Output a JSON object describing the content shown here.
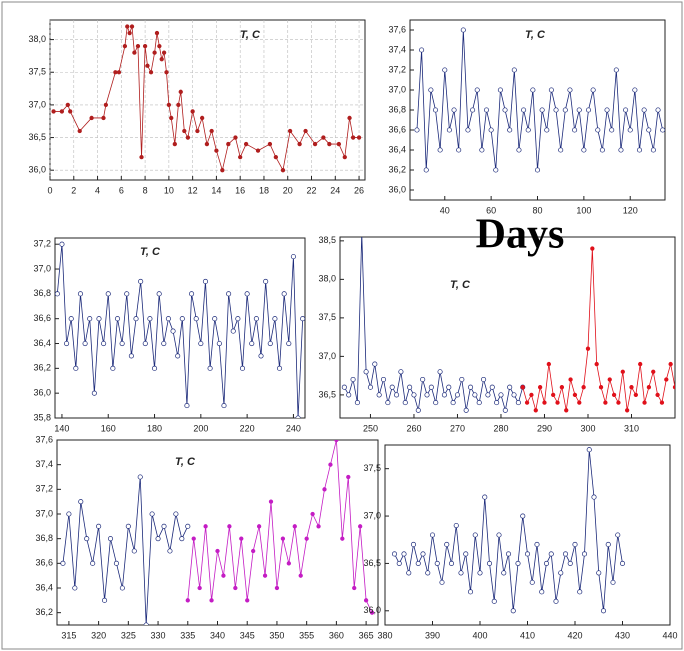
{
  "overlay_text": "Days",
  "chart_data": [
    {
      "type": "line",
      "title": "T, C",
      "grid": true,
      "xlim": [
        0,
        26.5
      ],
      "xticks": [
        0,
        2,
        4,
        6,
        8,
        10,
        12,
        14,
        16,
        18,
        20,
        22,
        24,
        26
      ],
      "ylim": [
        35.85,
        38.3
      ],
      "yticks": [
        {
          "value": 36.0,
          "label": "36,0"
        },
        {
          "value": 36.5,
          "label": "36,5"
        },
        {
          "value": 37.0,
          "label": "37,0"
        },
        {
          "value": 37.5,
          "label": "37,5"
        },
        {
          "value": 38.0,
          "label": "38,0"
        }
      ],
      "series": [
        {
          "color": "#b01e1e",
          "marker": "filled",
          "x": [
            0.3,
            1,
            1.5,
            1.7,
            2.5,
            3.5,
            4.5,
            4.7,
            5.5,
            5.8,
            6.3,
            6.5,
            6.7,
            6.9,
            7.1,
            7.4,
            7.7,
            8.0,
            8.2,
            8.5,
            8.8,
            9.0,
            9.2,
            9.4,
            9.6,
            9.8,
            10.0,
            10.2,
            10.5,
            10.8,
            11.0,
            11.3,
            11.6,
            12.0,
            12.4,
            12.8,
            13.2,
            13.6,
            14.0,
            14.5,
            15.0,
            15.6,
            16.0,
            16.5,
            17.5,
            18.5,
            19.0,
            19.6,
            20.2,
            21.0,
            21.5,
            22.3,
            23.0,
            23.5,
            24.3,
            24.8,
            25.2,
            25.5,
            26.0
          ],
          "values": [
            36.9,
            36.9,
            37.0,
            36.9,
            36.6,
            36.8,
            36.8,
            37.0,
            37.5,
            37.5,
            37.9,
            38.2,
            38.1,
            38.2,
            37.8,
            37.9,
            36.2,
            37.9,
            37.6,
            37.5,
            37.8,
            38.1,
            37.9,
            37.7,
            37.8,
            37.5,
            37.0,
            36.8,
            36.4,
            37.0,
            37.2,
            36.6,
            36.5,
            36.9,
            36.6,
            36.8,
            36.4,
            36.6,
            36.3,
            36.0,
            36.4,
            36.5,
            36.2,
            36.4,
            36.3,
            36.4,
            36.2,
            36.0,
            36.6,
            36.4,
            36.6,
            36.4,
            36.5,
            36.4,
            36.4,
            36.2,
            36.8,
            36.5,
            36.5
          ]
        }
      ]
    },
    {
      "type": "line",
      "title": "T, C",
      "grid": false,
      "xlim": [
        25,
        135
      ],
      "xticks": [
        40,
        60,
        80,
        100,
        120
      ],
      "ylim": [
        35.9,
        37.7
      ],
      "yticks": [
        {
          "value": 36.0,
          "label": "36,0"
        },
        {
          "value": 36.2,
          "label": "36,2"
        },
        {
          "value": 36.4,
          "label": "36,4"
        },
        {
          "value": 36.6,
          "label": "36,6"
        },
        {
          "value": 36.8,
          "label": "36,8"
        },
        {
          "value": 37.0,
          "label": "37,0"
        },
        {
          "value": 37.2,
          "label": "37,2"
        },
        {
          "value": 37.4,
          "label": "37,4"
        },
        {
          "value": 37.6,
          "label": "37,6"
        }
      ],
      "series": [
        {
          "color": "#1c2a7a",
          "marker": "open",
          "x": [
            28,
            30,
            32,
            34,
            36,
            38,
            40,
            42,
            44,
            46,
            48,
            50,
            52,
            54,
            56,
            58,
            60,
            62,
            64,
            66,
            68,
            70,
            72,
            74,
            76,
            78,
            80,
            82,
            84,
            86,
            88,
            90,
            92,
            94,
            96,
            98,
            100,
            102,
            104,
            106,
            108,
            110,
            112,
            114,
            116,
            118,
            120,
            122,
            124,
            126,
            128,
            130,
            132,
            134
          ],
          "values": [
            36.6,
            37.4,
            36.2,
            37.0,
            36.8,
            36.4,
            37.2,
            36.6,
            36.8,
            36.4,
            37.6,
            36.6,
            36.8,
            37.0,
            36.4,
            36.8,
            36.6,
            36.2,
            37.0,
            36.8,
            36.6,
            37.2,
            36.4,
            36.8,
            36.6,
            37.0,
            36.2,
            36.8,
            36.6,
            37.0,
            36.8,
            36.4,
            36.8,
            37.0,
            36.6,
            36.8,
            36.4,
            36.8,
            37.0,
            36.6,
            36.4,
            36.8,
            36.6,
            37.2,
            36.4,
            36.8,
            36.6,
            37.0,
            36.4,
            36.8,
            36.6,
            36.4,
            36.8,
            36.6
          ]
        }
      ]
    },
    {
      "type": "line",
      "title": "T, C",
      "grid": false,
      "xlim": [
        137,
        245
      ],
      "xticks": [
        140,
        160,
        180,
        200,
        220,
        240
      ],
      "ylim": [
        35.8,
        37.25
      ],
      "yticks": [
        {
          "value": 35.8,
          "label": "35,8"
        },
        {
          "value": 36.0,
          "label": "36,0"
        },
        {
          "value": 36.2,
          "label": "36,2"
        },
        {
          "value": 36.4,
          "label": "36,4"
        },
        {
          "value": 36.6,
          "label": "36,6"
        },
        {
          "value": 36.8,
          "label": "36,8"
        },
        {
          "value": 37.0,
          "label": "37,0"
        },
        {
          "value": 37.2,
          "label": "37,2"
        }
      ],
      "series": [
        {
          "color": "#1c2a7a",
          "marker": "open",
          "x": [
            138,
            140,
            142,
            144,
            146,
            148,
            150,
            152,
            154,
            156,
            158,
            160,
            162,
            164,
            166,
            168,
            170,
            172,
            174,
            176,
            178,
            180,
            182,
            184,
            186,
            188,
            190,
            192,
            194,
            196,
            198,
            200,
            202,
            204,
            206,
            208,
            210,
            212,
            214,
            216,
            218,
            220,
            222,
            224,
            226,
            228,
            230,
            232,
            234,
            236,
            238,
            240,
            242,
            244
          ],
          "values": [
            36.8,
            37.2,
            36.4,
            36.6,
            36.2,
            36.8,
            36.4,
            36.6,
            36.0,
            36.6,
            36.4,
            36.8,
            36.2,
            36.6,
            36.4,
            36.8,
            36.3,
            36.6,
            36.9,
            36.4,
            36.6,
            36.2,
            36.8,
            36.4,
            36.6,
            36.5,
            36.3,
            36.6,
            35.9,
            36.8,
            36.6,
            36.4,
            36.9,
            36.2,
            36.6,
            36.4,
            35.9,
            36.8,
            36.5,
            36.6,
            36.2,
            36.8,
            36.4,
            36.6,
            36.3,
            36.9,
            36.4,
            36.6,
            36.2,
            36.8,
            36.4,
            37.1,
            35.8,
            36.6
          ]
        }
      ]
    },
    {
      "type": "line",
      "title": "T, C",
      "grid": false,
      "xlim": [
        243,
        320
      ],
      "xticks": [
        250,
        260,
        270,
        280,
        290,
        300,
        310
      ],
      "ylim": [
        36.2,
        38.55
      ],
      "yticks": [
        {
          "value": 36.5,
          "label": "36,5"
        },
        {
          "value": 37.0,
          "label": "37,0"
        },
        {
          "value": 37.5,
          "label": "37,5"
        },
        {
          "value": 38.0,
          "label": "38,0"
        },
        {
          "value": 38.5,
          "label": "38,5"
        }
      ],
      "series": [
        {
          "color": "#1c2a7a",
          "marker": "open",
          "x": [
            244,
            245,
            246,
            247,
            248,
            249,
            250,
            251,
            252,
            253,
            254,
            255,
            256,
            257,
            258,
            259,
            260,
            261,
            262,
            263,
            264,
            265,
            266,
            267,
            268,
            269,
            270,
            271,
            272,
            273,
            274,
            275,
            276,
            277,
            278,
            279,
            280,
            281,
            282,
            283,
            284,
            285
          ],
          "values": [
            36.6,
            36.5,
            36.7,
            36.4,
            38.6,
            36.8,
            36.6,
            36.9,
            36.5,
            36.7,
            36.4,
            36.6,
            36.5,
            36.8,
            36.4,
            36.6,
            36.5,
            36.3,
            36.7,
            36.5,
            36.6,
            36.4,
            36.8,
            36.5,
            36.6,
            36.4,
            36.5,
            36.7,
            36.3,
            36.6,
            36.5,
            36.4,
            36.7,
            36.5,
            36.6,
            36.4,
            36.5,
            36.3,
            36.6,
            36.5,
            36.4,
            36.6
          ]
        },
        {
          "color": "#e0101a",
          "marker": "filled",
          "x": [
            285,
            286,
            287,
            288,
            289,
            290,
            291,
            292,
            293,
            294,
            295,
            296,
            297,
            298,
            299,
            300,
            301,
            302,
            303,
            304,
            305,
            306,
            307,
            308,
            309,
            310,
            311,
            312,
            313,
            314,
            315,
            316,
            317,
            318,
            319,
            320
          ],
          "values": [
            36.6,
            36.4,
            36.5,
            36.3,
            36.6,
            36.4,
            36.9,
            36.5,
            36.4,
            36.6,
            36.3,
            36.7,
            36.5,
            36.4,
            36.6,
            37.1,
            38.4,
            36.9,
            36.6,
            36.4,
            36.7,
            36.5,
            36.4,
            36.8,
            36.3,
            36.6,
            36.5,
            36.9,
            36.4,
            36.6,
            36.8,
            36.5,
            36.4,
            36.7,
            36.9,
            36.6
          ]
        }
      ]
    },
    {
      "type": "line",
      "title": "T, C",
      "grid": false,
      "xlim": [
        313,
        367
      ],
      "xticks": [
        315,
        320,
        325,
        330,
        335,
        340,
        345,
        350,
        355,
        360,
        365
      ],
      "ylim": [
        36.1,
        37.6
      ],
      "yticks": [
        {
          "value": 36.2,
          "label": "36,2"
        },
        {
          "value": 36.4,
          "label": "36,4"
        },
        {
          "value": 36.6,
          "label": "36,6"
        },
        {
          "value": 36.8,
          "label": "36,8"
        },
        {
          "value": 37.0,
          "label": "37,0"
        },
        {
          "value": 37.2,
          "label": "37,2"
        },
        {
          "value": 37.4,
          "label": "37,4"
        },
        {
          "value": 37.6,
          "label": "37,6"
        }
      ],
      "series": [
        {
          "color": "#1c2a7a",
          "marker": "open",
          "x": [
            314,
            315,
            316,
            317,
            318,
            319,
            320,
            321,
            322,
            323,
            324,
            325,
            326,
            327,
            328,
            329,
            330,
            331,
            332,
            333,
            334,
            335
          ],
          "values": [
            36.6,
            37.0,
            36.4,
            37.1,
            36.8,
            36.6,
            36.9,
            36.3,
            36.8,
            36.6,
            36.4,
            36.9,
            36.7,
            37.3,
            36.1,
            37.0,
            36.8,
            36.9,
            36.7,
            37.0,
            36.8,
            36.9
          ]
        },
        {
          "color": "#c41cc4",
          "marker": "filled",
          "x": [
            335,
            336,
            337,
            338,
            339,
            340,
            341,
            342,
            343,
            344,
            345,
            346,
            347,
            348,
            349,
            350,
            351,
            352,
            353,
            354,
            355,
            356,
            357,
            358,
            359,
            360,
            361,
            362,
            363,
            364,
            365,
            366
          ],
          "values": [
            36.3,
            36.8,
            36.4,
            36.9,
            36.3,
            36.7,
            36.5,
            36.9,
            36.4,
            36.8,
            36.3,
            36.7,
            36.9,
            36.5,
            37.1,
            36.4,
            36.8,
            36.6,
            36.9,
            36.5,
            36.8,
            37.0,
            36.9,
            37.2,
            37.4,
            37.6,
            36.8,
            37.3,
            36.4,
            36.9,
            36.3,
            36.2
          ]
        }
      ]
    },
    {
      "type": "line",
      "grid": false,
      "xlim": [
        380,
        440
      ],
      "xticks": [
        380,
        390,
        400,
        410,
        420,
        430,
        440
      ],
      "ylim": [
        35.85,
        37.75
      ],
      "yticks": [
        {
          "value": 36.0,
          "label": "36,0"
        },
        {
          "value": 36.5,
          "label": "36,5"
        },
        {
          "value": 37.0,
          "label": "37,0"
        },
        {
          "value": 37.5,
          "label": "37,5"
        }
      ],
      "series": [
        {
          "color": "#1c2a7a",
          "marker": "open",
          "x": [
            382,
            383,
            384,
            385,
            386,
            387,
            388,
            389,
            390,
            391,
            392,
            393,
            394,
            395,
            396,
            397,
            398,
            399,
            400,
            401,
            402,
            403,
            404,
            405,
            406,
            407,
            408,
            409,
            410,
            411,
            412,
            413,
            414,
            415,
            416,
            417,
            418,
            419,
            420,
            421,
            422,
            423,
            424,
            425,
            426,
            427,
            428,
            429,
            430
          ],
          "values": [
            36.6,
            36.5,
            36.6,
            36.4,
            36.7,
            36.5,
            36.6,
            36.4,
            36.8,
            36.5,
            36.3,
            36.7,
            36.5,
            36.9,
            36.4,
            36.6,
            36.2,
            36.8,
            36.4,
            37.2,
            36.5,
            36.1,
            36.8,
            36.4,
            36.6,
            36.0,
            36.5,
            37.0,
            36.6,
            36.3,
            36.7,
            36.2,
            36.5,
            36.6,
            36.1,
            36.4,
            36.6,
            36.5,
            36.7,
            36.2,
            36.6,
            37.7,
            37.2,
            36.4,
            36.0,
            36.7,
            36.3,
            36.8,
            36.5
          ]
        }
      ]
    }
  ]
}
